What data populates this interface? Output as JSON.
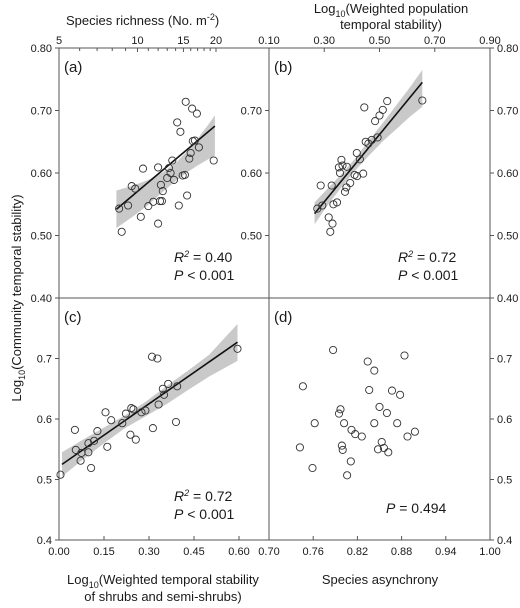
{
  "chart_data": [
    {
      "panel": "(a)",
      "type": "scatter",
      "top_label": "Species richness (No. m-2)",
      "xlabel": "",
      "ylabel": "Log10(Community temporal stability)",
      "xscale": "log",
      "xlim": [
        5,
        22
      ],
      "ylim": [
        0.4,
        0.8
      ],
      "xticks": [
        5,
        10,
        15,
        20
      ],
      "yticks_left": [
        "0.40",
        "0.50",
        "0.60",
        "0.70",
        "0.80"
      ],
      "yticks_right": [
        "0.50",
        "0.60",
        "0.70"
      ],
      "fit": {
        "x": [
          8.3,
          19.8
        ],
        "y": [
          0.542,
          0.675
        ]
      },
      "band": {
        "x": [
          8.3,
          9.5,
          11,
          12.5,
          14,
          15.5,
          17,
          18.5,
          19.8
        ],
        "lower": [
          0.512,
          0.529,
          0.549,
          0.57,
          0.587,
          0.601,
          0.612,
          0.621,
          0.628
        ],
        "upper": [
          0.572,
          0.579,
          0.589,
          0.601,
          0.616,
          0.635,
          0.655,
          0.675,
          0.692
        ]
      },
      "points": [
        [
          8.7,
          0.506
        ],
        [
          8.5,
          0.543
        ],
        [
          9.2,
          0.548
        ],
        [
          9.5,
          0.579
        ],
        [
          9.8,
          0.575
        ],
        [
          10.3,
          0.53
        ],
        [
          10.5,
          0.607
        ],
        [
          11.0,
          0.547
        ],
        [
          11.5,
          0.554
        ],
        [
          12.0,
          0.609
        ],
        [
          12.0,
          0.519
        ],
        [
          12.2,
          0.555
        ],
        [
          12.3,
          0.581
        ],
        [
          12.4,
          0.555
        ],
        [
          12.5,
          0.571
        ],
        [
          13.0,
          0.592
        ],
        [
          13.2,
          0.608
        ],
        [
          13.4,
          0.6
        ],
        [
          13.6,
          0.62
        ],
        [
          13.8,
          0.589
        ],
        [
          14.2,
          0.681
        ],
        [
          14.4,
          0.548
        ],
        [
          14.6,
          0.666
        ],
        [
          14.9,
          0.596
        ],
        [
          15.2,
          0.597
        ],
        [
          15.3,
          0.714
        ],
        [
          15.5,
          0.564
        ],
        [
          15.8,
          0.623
        ],
        [
          16.0,
          0.632
        ],
        [
          16.2,
          0.703
        ],
        [
          16.3,
          0.651
        ],
        [
          16.6,
          0.652
        ],
        [
          16.9,
          0.695
        ],
        [
          17.2,
          0.641
        ],
        [
          19.6,
          0.62
        ]
      ],
      "annotations": {
        "r2": "R2 = 0.40",
        "p": "P < 0.001"
      }
    },
    {
      "panel": "(b)",
      "type": "scatter",
      "top_label": "Log10(Weighted population temporal stability)",
      "xlabel": "",
      "ylabel": "",
      "xlim": [
        0.1,
        0.9
      ],
      "ylim": [
        0.4,
        0.8
      ],
      "xticks": [
        "0.10",
        "0.30",
        "0.50",
        "0.70",
        "0.90"
      ],
      "yticks_right": [
        "0.40",
        "0.50",
        "0.60",
        "0.70",
        "0.80"
      ],
      "fit": {
        "x": [
          0.265,
          0.655
        ],
        "y": [
          0.535,
          0.745
        ]
      },
      "band": {
        "x": [
          0.265,
          0.31,
          0.36,
          0.41,
          0.46,
          0.51,
          0.56,
          0.61,
          0.655
        ],
        "lower": [
          0.518,
          0.547,
          0.576,
          0.603,
          0.627,
          0.65,
          0.67,
          0.69,
          0.706
        ],
        "upper": [
          0.553,
          0.574,
          0.597,
          0.622,
          0.651,
          0.679,
          0.708,
          0.737,
          0.765
        ]
      },
      "points": [
        [
          0.275,
          0.543
        ],
        [
          0.287,
          0.58
        ],
        [
          0.293,
          0.548
        ],
        [
          0.316,
          0.529
        ],
        [
          0.322,
          0.506
        ],
        [
          0.327,
          0.58
        ],
        [
          0.33,
          0.519
        ],
        [
          0.333,
          0.55
        ],
        [
          0.346,
          0.553
        ],
        [
          0.353,
          0.609
        ],
        [
          0.357,
          0.6
        ],
        [
          0.362,
          0.621
        ],
        [
          0.366,
          0.612
        ],
        [
          0.375,
          0.57
        ],
        [
          0.38,
          0.577
        ],
        [
          0.382,
          0.61
        ],
        [
          0.394,
          0.584
        ],
        [
          0.41,
          0.597
        ],
        [
          0.418,
          0.632
        ],
        [
          0.419,
          0.595
        ],
        [
          0.429,
          0.622
        ],
        [
          0.441,
          0.599
        ],
        [
          0.445,
          0.705
        ],
        [
          0.45,
          0.65
        ],
        [
          0.46,
          0.647
        ],
        [
          0.472,
          0.653
        ],
        [
          0.484,
          0.683
        ],
        [
          0.493,
          0.657
        ],
        [
          0.5,
          0.692
        ],
        [
          0.512,
          0.701
        ],
        [
          0.528,
          0.715
        ],
        [
          0.655,
          0.716
        ]
      ],
      "annotations": {
        "r2": "R2 = 0.72",
        "p": "P < 0.001"
      }
    },
    {
      "panel": "(c)",
      "type": "scatter",
      "xlabel": "Log10(Weighted temporal stability of shrubs and semi-shrubs)",
      "ylabel": "Log10(Community temporal stability)",
      "xlim": [
        0.0,
        0.7
      ],
      "ylim": [
        0.4,
        0.8
      ],
      "xticks": [
        "0.00",
        "0.15",
        "0.30",
        "0.45",
        "0.60",
        "0.70"
      ],
      "yticks_left": [
        "0.4",
        "0.5",
        "0.6",
        "0.7"
      ],
      "fit": {
        "x": [
          0.01,
          0.595
        ],
        "y": [
          0.525,
          0.727
        ]
      },
      "band": {
        "x": [
          0.01,
          0.08,
          0.15,
          0.22,
          0.29,
          0.36,
          0.43,
          0.5,
          0.595
        ],
        "lower": [
          0.505,
          0.533,
          0.56,
          0.585,
          0.605,
          0.625,
          0.648,
          0.67,
          0.696
        ],
        "upper": [
          0.545,
          0.566,
          0.586,
          0.606,
          0.629,
          0.655,
          0.68,
          0.706,
          0.757
        ]
      },
      "points": [
        [
          0.005,
          0.508
        ],
        [
          0.053,
          0.582
        ],
        [
          0.056,
          0.549
        ],
        [
          0.072,
          0.531
        ],
        [
          0.075,
          0.544
        ],
        [
          0.098,
          0.56
        ],
        [
          0.098,
          0.545
        ],
        [
          0.107,
          0.519
        ],
        [
          0.117,
          0.564
        ],
        [
          0.128,
          0.58
        ],
        [
          0.155,
          0.611
        ],
        [
          0.161,
          0.554
        ],
        [
          0.174,
          0.598
        ],
        [
          0.211,
          0.593
        ],
        [
          0.223,
          0.609
        ],
        [
          0.238,
          0.574
        ],
        [
          0.241,
          0.618
        ],
        [
          0.248,
          0.616
        ],
        [
          0.256,
          0.566
        ],
        [
          0.275,
          0.611
        ],
        [
          0.288,
          0.614
        ],
        [
          0.31,
          0.703
        ],
        [
          0.313,
          0.585
        ],
        [
          0.328,
          0.7
        ],
        [
          0.332,
          0.624
        ],
        [
          0.346,
          0.65
        ],
        [
          0.35,
          0.64
        ],
        [
          0.364,
          0.658
        ],
        [
          0.39,
          0.595
        ],
        [
          0.394,
          0.654
        ],
        [
          0.595,
          0.716
        ]
      ],
      "annotations": {
        "r2": "R2 = 0.72",
        "p": "P < 0.001"
      }
    },
    {
      "panel": "(d)",
      "type": "scatter",
      "xlabel": "Species asynchrony",
      "ylabel": "",
      "xlim": [
        0.7,
        1.0
      ],
      "ylim": [
        0.4,
        0.8
      ],
      "xticks": [
        "0.70",
        "0.76",
        "0.82",
        "0.88",
        "0.94",
        "1.00"
      ],
      "yticks_right": [
        "0.4",
        "0.5",
        "0.6",
        "0.7"
      ],
      "points": [
        [
          0.742,
          0.553
        ],
        [
          0.746,
          0.654
        ],
        [
          0.759,
          0.519
        ],
        [
          0.762,
          0.593
        ],
        [
          0.787,
          0.714
        ],
        [
          0.795,
          0.609
        ],
        [
          0.797,
          0.616
        ],
        [
          0.799,
          0.556
        ],
        [
          0.8,
          0.549
        ],
        [
          0.802,
          0.593
        ],
        [
          0.806,
          0.507
        ],
        [
          0.811,
          0.53
        ],
        [
          0.812,
          0.582
        ],
        [
          0.817,
          0.575
        ],
        [
          0.826,
          0.571
        ],
        [
          0.834,
          0.695
        ],
        [
          0.836,
          0.648
        ],
        [
          0.843,
          0.68
        ],
        [
          0.843,
          0.593
        ],
        [
          0.848,
          0.55
        ],
        [
          0.85,
          0.62
        ],
        [
          0.853,
          0.562
        ],
        [
          0.856,
          0.552
        ],
        [
          0.86,
          0.61
        ],
        [
          0.862,
          0.545
        ],
        [
          0.867,
          0.647
        ],
        [
          0.874,
          0.593
        ],
        [
          0.878,
          0.64
        ],
        [
          0.884,
          0.705
        ],
        [
          0.888,
          0.571
        ],
        [
          0.898,
          0.579
        ]
      ],
      "annotations": {
        "p": "P = 0.494"
      }
    }
  ]
}
